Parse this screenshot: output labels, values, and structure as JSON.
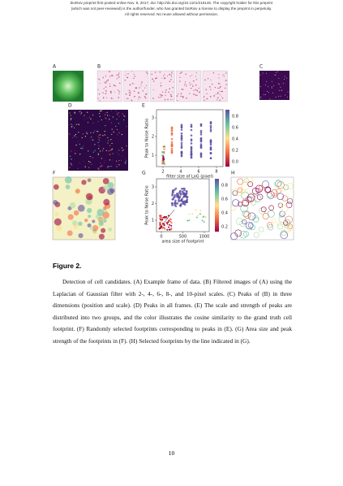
{
  "header": {
    "lines": [
      "bioRxiv preprint first posted online Nov. 9, 2017; doi: http://dx.doi.org/10.1101/215145. The copyright holder for this preprint",
      "(which was not peer-reviewed) is the author/funder, who has granted bioRxiv a license to display the preprint in perpetuity.",
      "All rights reserved. No reuse allowed without permission."
    ]
  },
  "figure": {
    "panel_labels": [
      "A",
      "B",
      "C",
      "D",
      "E",
      "F",
      "G",
      "H"
    ],
    "panel_e": {
      "xlabel": "filter size of LoG (pixel)",
      "ylabel": "Peak to Noise Ratio",
      "xticks": [
        2,
        4,
        6,
        8
      ],
      "yticks": [
        1,
        2,
        3
      ],
      "colorbar_ticks": [
        "0.0",
        "0.2",
        "0.4",
        "0.6",
        "0.8"
      ]
    },
    "panel_g": {
      "xlabel": "area size of footprint",
      "ylabel": "Peak to Noise Ratio",
      "xticks": [
        0,
        500,
        1000
      ],
      "yticks": [
        1,
        2,
        3
      ],
      "colorbar_ticks": [
        "0.2",
        "0.4",
        "0.6",
        "0.8"
      ]
    }
  },
  "caption": {
    "title": "Figure 2.",
    "text": "Detection of cell candidates. (A) Example frame of data. (B) Filtered images of (A) using the Laplacian of Gaussian filter with 2-, 4-, 6-, 8-, and 10-pixel scales. (C) Peaks of (B) in three dimensions (position and scale). (D) Peaks in all frames. (E) The scale and strength of peaks are distributed into two groups, and the color illustrates the cosine similarity to the grand truth cell footprint. (F) Randomly selected footprints corresponding to peaks in (E). (G) Area size and peak strength of the footprints in (F). (H) Selected footprints by the line indicated in (G)."
  },
  "page_number": "10"
}
